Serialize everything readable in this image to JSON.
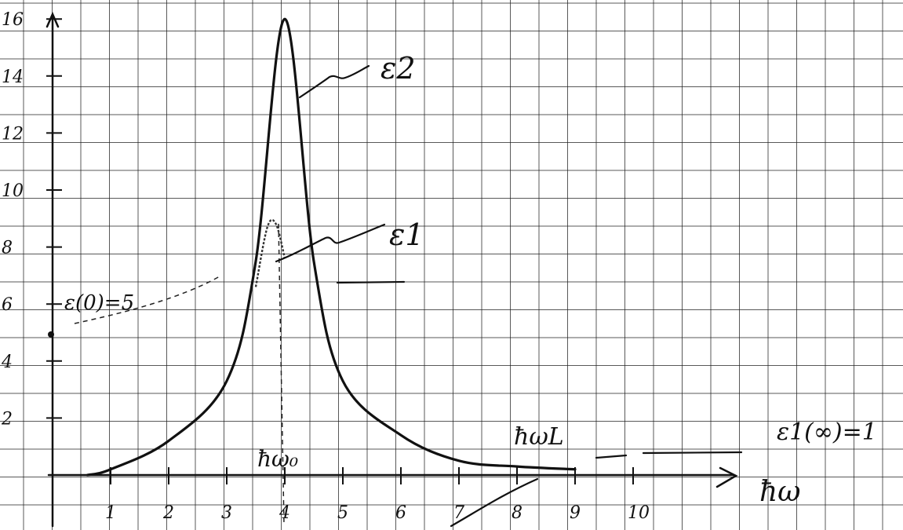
{
  "chart_data": {
    "type": "line",
    "x_axis_label": "ħω",
    "y_axis_label": "",
    "x_ticks": [
      "1",
      "2",
      "3",
      "4",
      "5",
      "6",
      "7",
      "8",
      "9",
      "10"
    ],
    "y_ticks": [
      "2",
      "4",
      "6",
      "8",
      "10",
      "12",
      "14",
      "16"
    ],
    "xlim": [
      0,
      10
    ],
    "ylim": [
      0,
      16
    ],
    "grid": true,
    "series": [
      {
        "name": "ε2",
        "x": [
          0.6,
          1,
          2,
          3,
          3.5,
          4,
          4.5,
          5,
          6,
          7,
          8,
          9
        ],
        "y": [
          0,
          0.2,
          1.2,
          3.3,
          7.5,
          16,
          7.5,
          3.3,
          1.4,
          0.5,
          0.3,
          0.2
        ]
      },
      {
        "name": "ε1",
        "x": [
          3.5,
          3.7,
          3.85,
          4.0
        ],
        "y": [
          6.6,
          8.7,
          8.8,
          7.6
        ]
      }
    ],
    "annotations": [
      {
        "text": "ε(0)=5",
        "x": 0,
        "y": 5
      },
      {
        "text": "ε1(∞)=1",
        "x": 10,
        "y": 1
      },
      {
        "text": "ħω₀",
        "x": 4,
        "y": 0
      },
      {
        "text": "ħω_L",
        "x": 8,
        "y": 0.5
      }
    ]
  },
  "labels": {
    "eps2": "ε2",
    "eps1": "ε1",
    "eps0": "ε(0)=5",
    "epsinf": "ε1(∞)=1",
    "omega0": "ħω₀",
    "omegaL": "ħωL",
    "xaxis": "ħω"
  }
}
